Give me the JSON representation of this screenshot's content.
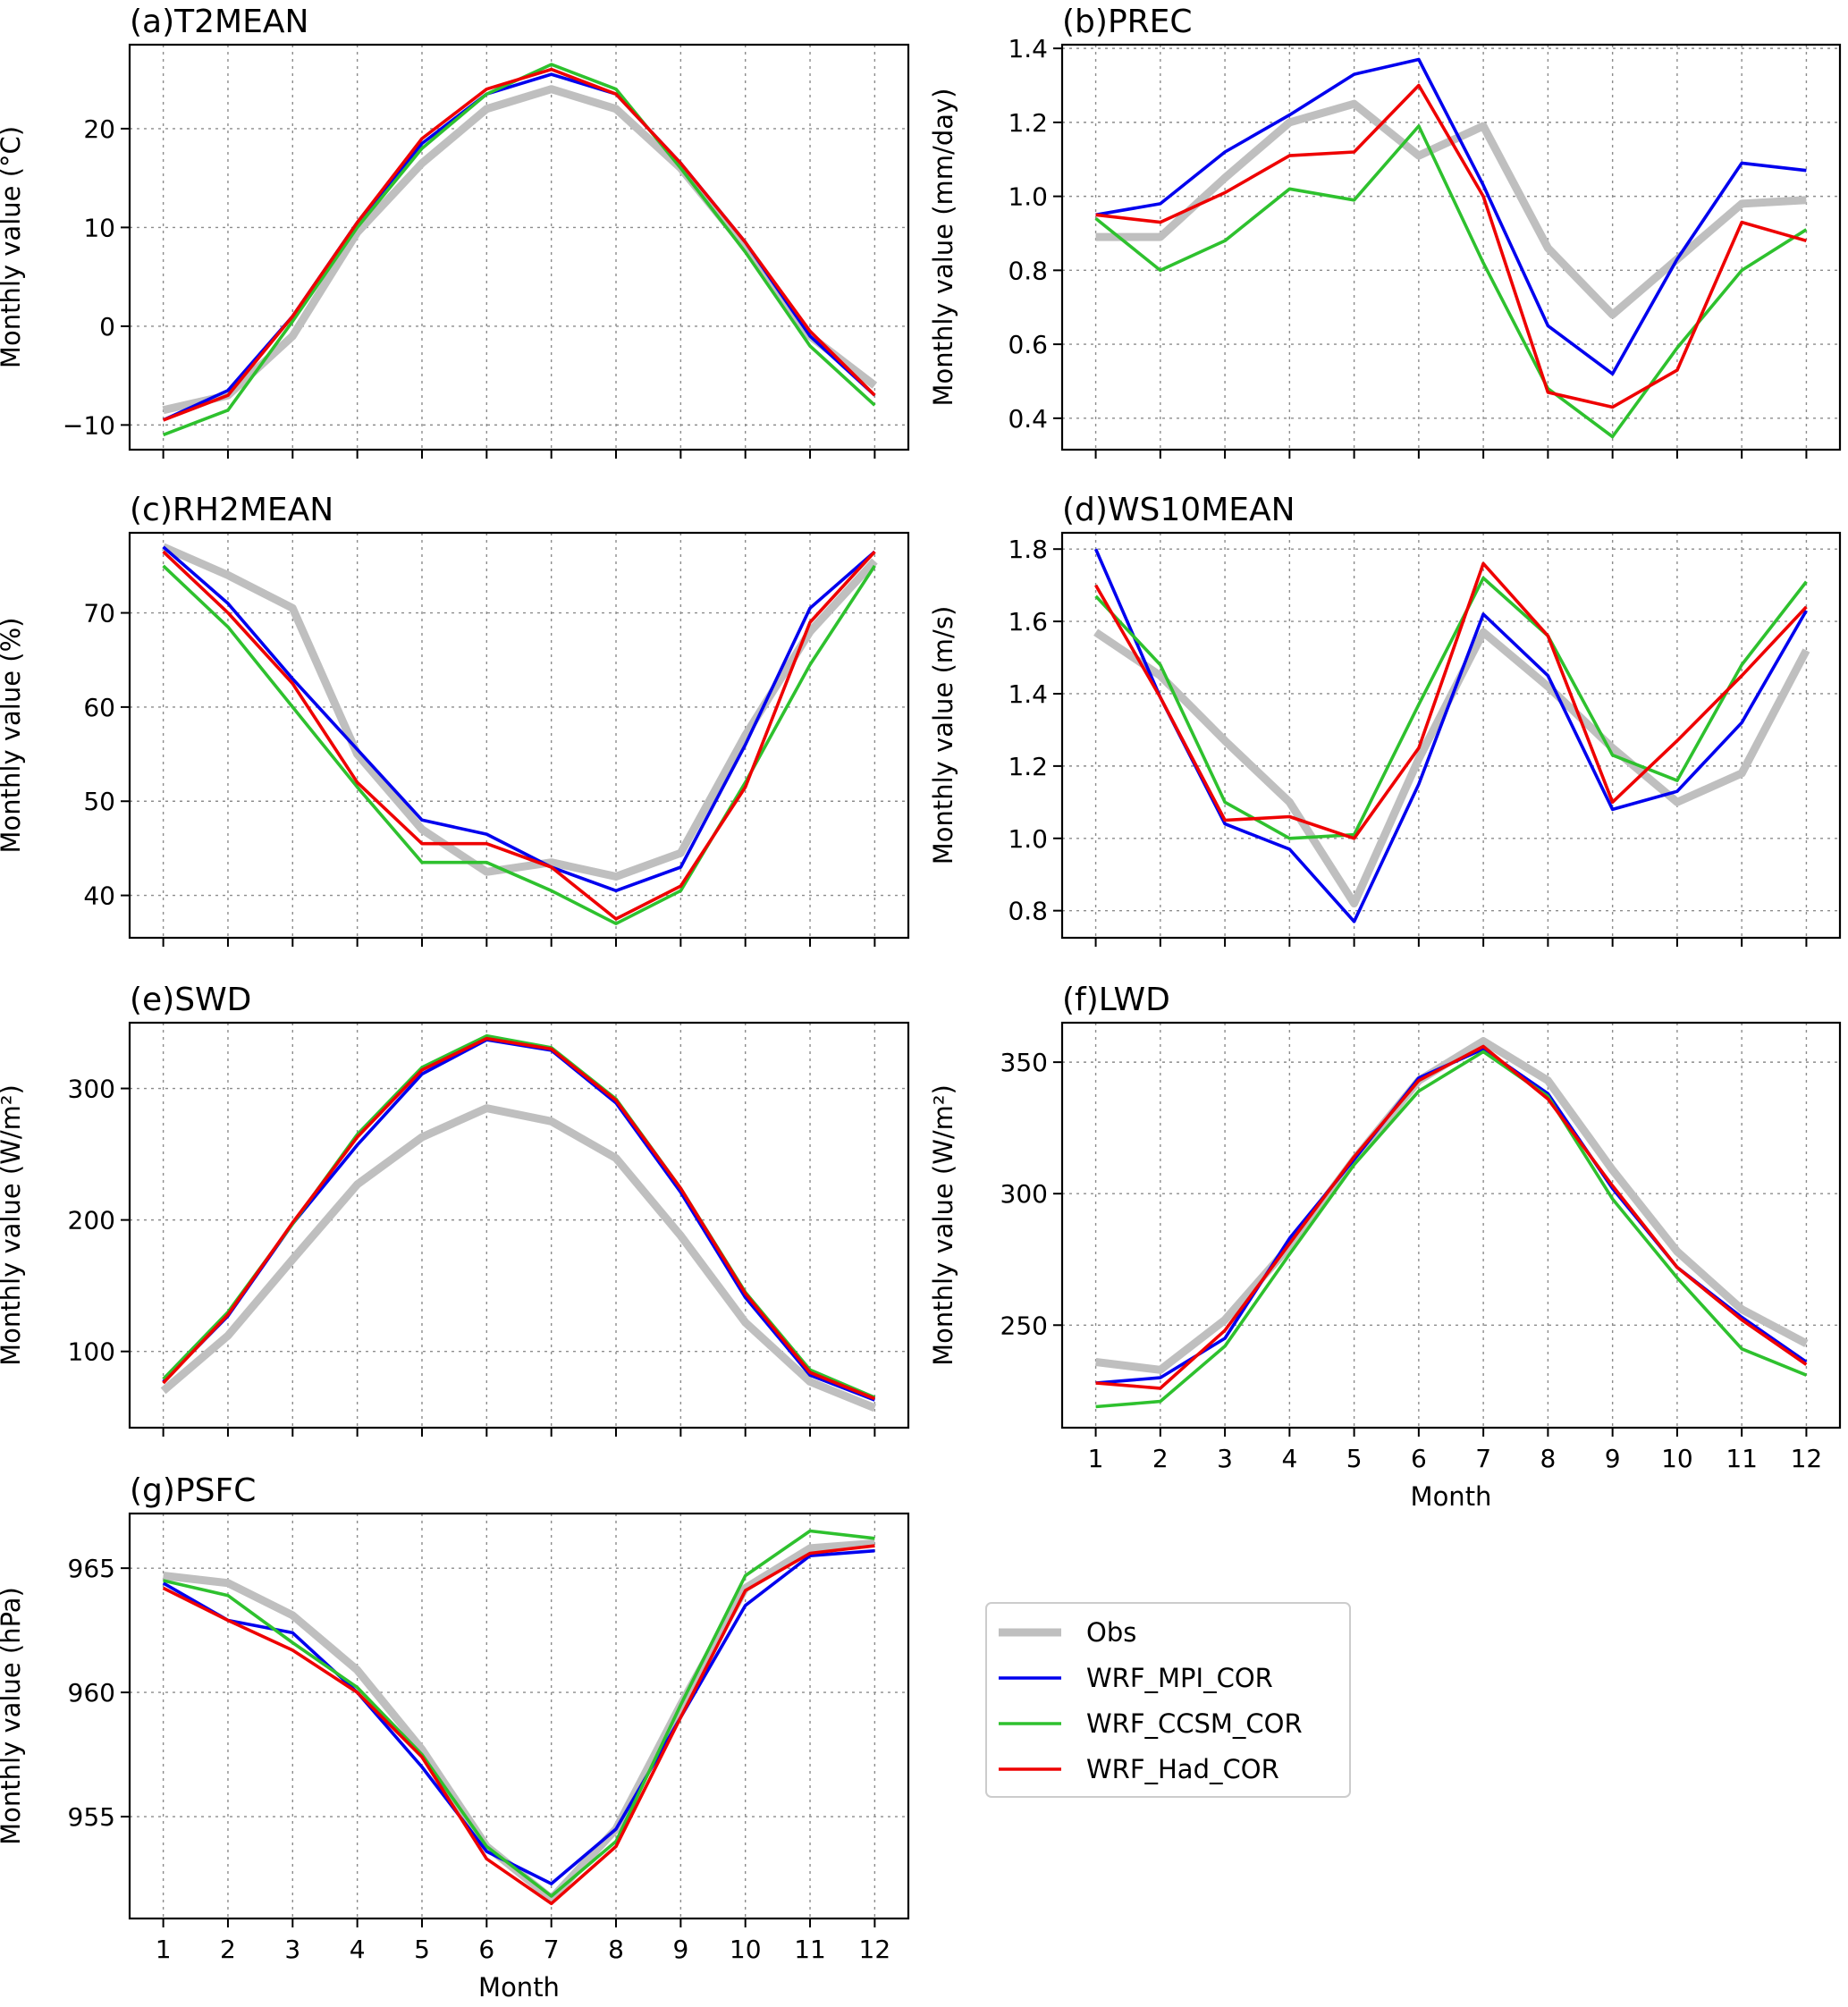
{
  "figure": {
    "legend": [
      {
        "name": "Obs",
        "color": "#bfbfbf"
      },
      {
        "name": "WRF_MPI_COR",
        "color": "#0000ee"
      },
      {
        "name": "WRF_CCSM_COR",
        "color": "#2ec12e"
      },
      {
        "name": "WRF_Had_COR",
        "color": "#ee0000"
      }
    ]
  },
  "chart_data": [
    {
      "id": "a",
      "type": "line",
      "title": "(a)T2MEAN",
      "xlabel": "",
      "ylabel": "Monthly value (°C)",
      "x": [
        1,
        2,
        3,
        4,
        5,
        6,
        7,
        8,
        9,
        10,
        11,
        12
      ],
      "ylim": [
        -12.5,
        28.5
      ],
      "yticks": [
        -10,
        0,
        10,
        20
      ],
      "yticklabels": [
        "−10",
        "0",
        "10",
        "20"
      ],
      "show_xticklabels": false,
      "series": [
        {
          "name": "Obs",
          "values": [
            -8.5,
            -7,
            -1,
            9.5,
            16.5,
            22,
            24,
            22,
            16,
            8,
            -1,
            -6
          ]
        },
        {
          "name": "WRF_MPI_COR",
          "values": [
            -9.5,
            -6.5,
            1,
            10.5,
            18.5,
            23.5,
            25.5,
            23.5,
            16.5,
            8.5,
            -1,
            -7
          ]
        },
        {
          "name": "WRF_CCSM_COR",
          "values": [
            -11,
            -8.5,
            0.5,
            10,
            18,
            23.5,
            26.5,
            24,
            16,
            7.5,
            -2,
            -8
          ]
        },
        {
          "name": "WRF_Had_COR",
          "values": [
            -9.5,
            -7,
            1,
            10.5,
            19,
            24,
            26,
            23.5,
            16.5,
            8.5,
            -0.5,
            -7
          ]
        }
      ]
    },
    {
      "id": "b",
      "type": "line",
      "title": "(b)PREC",
      "xlabel": "",
      "ylabel": "Monthly value (mm/day)",
      "x": [
        1,
        2,
        3,
        4,
        5,
        6,
        7,
        8,
        9,
        10,
        11,
        12
      ],
      "ylim": [
        0.315,
        1.41
      ],
      "yticks": [
        0.4,
        0.6,
        0.8,
        1.0,
        1.2,
        1.4
      ],
      "yticklabels": [
        "0.4",
        "0.6",
        "0.8",
        "1.0",
        "1.2",
        "1.4"
      ],
      "show_xticklabels": false,
      "series": [
        {
          "name": "Obs",
          "values": [
            0.89,
            0.89,
            1.05,
            1.2,
            1.25,
            1.11,
            1.19,
            0.86,
            0.68,
            0.83,
            0.98,
            0.99
          ]
        },
        {
          "name": "WRF_MPI_COR",
          "values": [
            0.95,
            0.98,
            1.12,
            1.22,
            1.33,
            1.37,
            1.03,
            0.65,
            0.52,
            0.83,
            1.09,
            1.07
          ]
        },
        {
          "name": "WRF_CCSM_COR",
          "values": [
            0.94,
            0.8,
            0.88,
            1.02,
            0.99,
            1.19,
            0.82,
            0.48,
            0.35,
            0.59,
            0.8,
            0.91
          ]
        },
        {
          "name": "WRF_Had_COR",
          "values": [
            0.95,
            0.93,
            1.01,
            1.11,
            1.12,
            1.3,
            1.0,
            0.47,
            0.43,
            0.53,
            0.93,
            0.88
          ]
        }
      ]
    },
    {
      "id": "c",
      "type": "line",
      "title": "(c)RH2MEAN",
      "xlabel": "",
      "ylabel": "Monthly value (%)",
      "x": [
        1,
        2,
        3,
        4,
        5,
        6,
        7,
        8,
        9,
        10,
        11,
        12
      ],
      "ylim": [
        35.5,
        78.5
      ],
      "yticks": [
        40,
        50,
        60,
        70
      ],
      "yticklabels": [
        "40",
        "50",
        "60",
        "70"
      ],
      "show_xticklabels": false,
      "series": [
        {
          "name": "Obs",
          "values": [
            77,
            74,
            70.5,
            55,
            47,
            42.5,
            43.5,
            42,
            44.5,
            57,
            68,
            75.5
          ]
        },
        {
          "name": "WRF_MPI_COR",
          "values": [
            77,
            71,
            63,
            55.5,
            48,
            46.5,
            43,
            40.5,
            43,
            56,
            70.5,
            76.5
          ]
        },
        {
          "name": "WRF_CCSM_COR",
          "values": [
            75,
            68.5,
            60,
            51.5,
            43.5,
            43.5,
            40.5,
            37,
            40.5,
            52,
            64.5,
            75
          ]
        },
        {
          "name": "WRF_Had_COR",
          "values": [
            76.5,
            70,
            62.5,
            52,
            45.5,
            45.5,
            43,
            37.5,
            41,
            51.5,
            69,
            76.5
          ]
        }
      ]
    },
    {
      "id": "d",
      "type": "line",
      "title": "(d)WS10MEAN",
      "xlabel": "",
      "ylabel": "Monthly value (m/s)",
      "x": [
        1,
        2,
        3,
        4,
        5,
        6,
        7,
        8,
        9,
        10,
        11,
        12
      ],
      "ylim": [
        0.725,
        1.845
      ],
      "yticks": [
        0.8,
        1.0,
        1.2,
        1.4,
        1.6,
        1.8
      ],
      "yticklabels": [
        "0.8",
        "1.0",
        "1.2",
        "1.4",
        "1.6",
        "1.8"
      ],
      "show_xticklabels": false,
      "series": [
        {
          "name": "Obs",
          "values": [
            1.57,
            1.45,
            1.27,
            1.1,
            0.82,
            1.22,
            1.57,
            1.42,
            1.25,
            1.1,
            1.18,
            1.52
          ]
        },
        {
          "name": "WRF_MPI_COR",
          "values": [
            1.8,
            1.39,
            1.04,
            0.97,
            0.77,
            1.15,
            1.62,
            1.45,
            1.08,
            1.13,
            1.32,
            1.63
          ]
        },
        {
          "name": "WRF_CCSM_COR",
          "values": [
            1.67,
            1.48,
            1.1,
            1.0,
            1.01,
            1.37,
            1.72,
            1.56,
            1.23,
            1.16,
            1.48,
            1.71
          ]
        },
        {
          "name": "WRF_Had_COR",
          "values": [
            1.7,
            1.39,
            1.05,
            1.06,
            1.0,
            1.25,
            1.76,
            1.56,
            1.1,
            1.27,
            1.45,
            1.64
          ]
        }
      ]
    },
    {
      "id": "e",
      "type": "line",
      "title": "(e)SWD",
      "xlabel": "",
      "ylabel": "Monthly value (W/m²)",
      "x": [
        1,
        2,
        3,
        4,
        5,
        6,
        7,
        8,
        9,
        10,
        11,
        12
      ],
      "ylim": [
        42,
        350
      ],
      "yticks": [
        100,
        200,
        300
      ],
      "yticklabels": [
        "100",
        "200",
        "300"
      ],
      "show_xticklabels": false,
      "series": [
        {
          "name": "Obs",
          "values": [
            70,
            112,
            170,
            227,
            263,
            285,
            275,
            247,
            188,
            122,
            77,
            57
          ]
        },
        {
          "name": "WRF_MPI_COR",
          "values": [
            77,
            127,
            197,
            257,
            311,
            337,
            329,
            289,
            221,
            141,
            82,
            63
          ]
        },
        {
          "name": "WRF_CCSM_COR",
          "values": [
            79,
            130,
            197,
            265,
            316,
            340,
            331,
            292,
            224,
            145,
            86,
            65
          ]
        },
        {
          "name": "WRF_Had_COR",
          "values": [
            76,
            128,
            198,
            263,
            314,
            338,
            330,
            291,
            224,
            144,
            84,
            64
          ]
        }
      ]
    },
    {
      "id": "f",
      "type": "line",
      "title": "(f)LWD",
      "xlabel": "Month",
      "ylabel": "Monthly value (W/m²)",
      "x": [
        1,
        2,
        3,
        4,
        5,
        6,
        7,
        8,
        9,
        10,
        11,
        12
      ],
      "ylim": [
        211,
        365
      ],
      "yticks": [
        250,
        300,
        350
      ],
      "yticklabels": [
        "250",
        "300",
        "350"
      ],
      "show_xticklabels": true,
      "series": [
        {
          "name": "Obs",
          "values": [
            236,
            233,
            252,
            280,
            313,
            343,
            358,
            343,
            309,
            278,
            256,
            243
          ]
        },
        {
          "name": "WRF_MPI_COR",
          "values": [
            228,
            230,
            245,
            283,
            313,
            344,
            355,
            338,
            302,
            272,
            253,
            236
          ]
        },
        {
          "name": "WRF_CCSM_COR",
          "values": [
            219,
            221,
            242,
            277,
            311,
            339,
            354,
            337,
            298,
            268,
            241,
            231
          ]
        },
        {
          "name": "WRF_Had_COR",
          "values": [
            228,
            226,
            248,
            281,
            314,
            343,
            356,
            336,
            303,
            272,
            252,
            235
          ]
        }
      ]
    },
    {
      "id": "g",
      "type": "line",
      "title": "(g)PSFC",
      "xlabel": "Month",
      "ylabel": "Monthly value (hPa)",
      "x": [
        1,
        2,
        3,
        4,
        5,
        6,
        7,
        8,
        9,
        10,
        11,
        12
      ],
      "ylim": [
        950.9,
        967.2
      ],
      "yticks": [
        955,
        960,
        965
      ],
      "yticklabels": [
        "955",
        "960",
        "965"
      ],
      "show_xticklabels": true,
      "series": [
        {
          "name": "Obs",
          "values": [
            964.7,
            964.4,
            963.1,
            960.9,
            957.7,
            953.8,
            951.7,
            954.5,
            959.5,
            964.2,
            965.8,
            966
          ]
        },
        {
          "name": "WRF_MPI_COR",
          "values": [
            964.4,
            962.9,
            962.4,
            960.0,
            957.0,
            953.6,
            952.3,
            954.5,
            959.0,
            963.5,
            965.5,
            965.7
          ]
        },
        {
          "name": "WRF_CCSM_COR",
          "values": [
            964.5,
            963.9,
            962.0,
            960.2,
            957.5,
            953.8,
            951.8,
            954.0,
            959.5,
            964.7,
            966.5,
            966.2
          ]
        },
        {
          "name": "WRF_Had_COR",
          "values": [
            964.2,
            962.9,
            961.7,
            960.0,
            957.4,
            953.3,
            951.5,
            953.8,
            959.0,
            964.1,
            965.6,
            965.9
          ]
        }
      ]
    }
  ]
}
